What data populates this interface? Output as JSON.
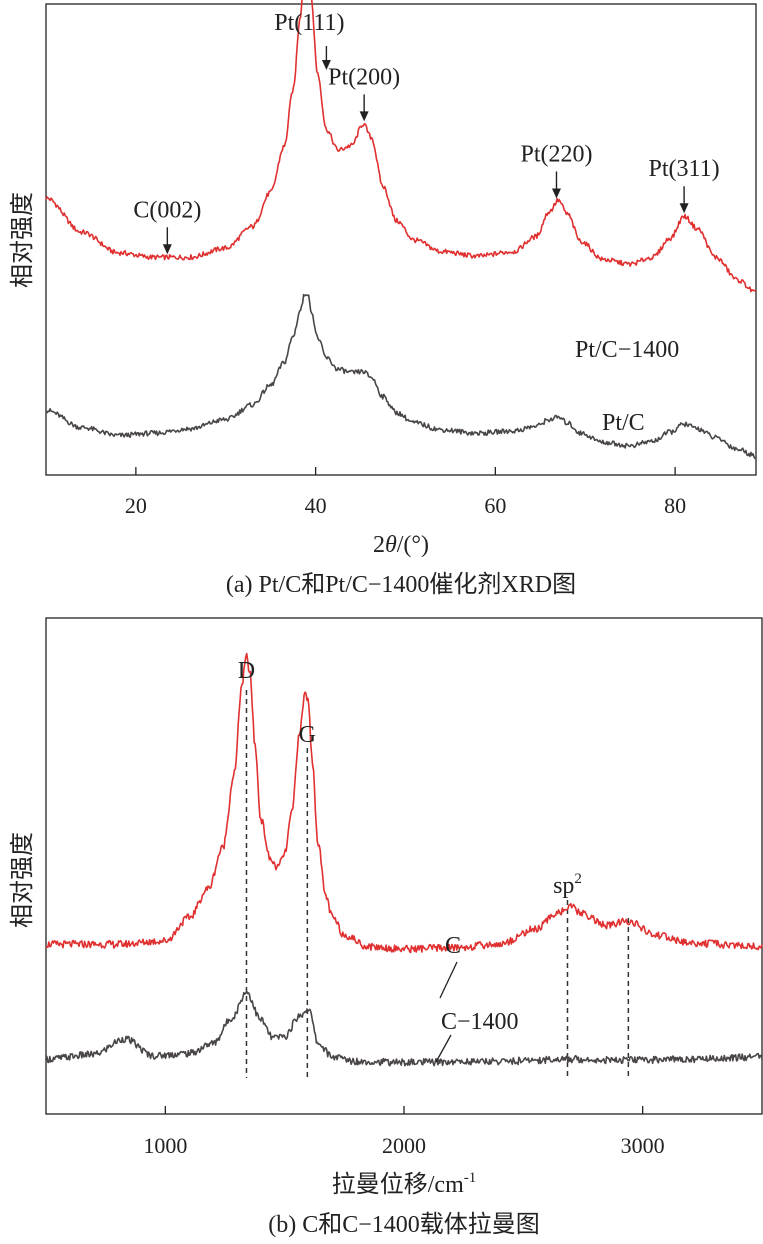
{
  "chart_data": [
    {
      "type": "line",
      "caption": "(a) Pt/C和Pt/C−1400催化剂XRD图",
      "xlabel": "2θ/(°)",
      "xlabel_prefix": "2",
      "xlabel_theta": "θ",
      "xlabel_suffix": "/(°)",
      "ylabel": "相对强度",
      "xlim": [
        10,
        89
      ],
      "xticks": [
        20,
        40,
        60,
        80
      ],
      "grid": false,
      "y_units": "relative intensity (a.u.)",
      "series": [
        {
          "name": "Pt/C−1400",
          "color": "#e03030",
          "x": [
            10,
            14,
            18,
            22,
            26,
            30,
            33,
            35,
            36.5,
            37.5,
            38.3,
            38.8,
            39.1,
            39.5,
            40.2,
            41.2,
            42.5,
            44,
            45.3,
            46.2,
            47.5,
            49,
            51,
            54,
            58,
            62,
            64.5,
            66,
            67,
            68,
            69.5,
            72,
            75,
            77.5,
            79.5,
            81,
            82.5,
            84.5,
            87,
            89
          ],
          "y": [
            10.0,
            7.0,
            5.2,
            4.8,
            4.8,
            5.6,
            7.5,
            10.5,
            14.5,
            19.5,
            26.0,
            30.5,
            31.0,
            27.5,
            21.0,
            16.0,
            14.2,
            14.6,
            16.5,
            15.3,
            11.0,
            8.0,
            6.3,
            5.3,
            4.9,
            5.3,
            6.6,
            8.8,
            9.8,
            8.6,
            6.2,
            4.6,
            4.2,
            4.8,
            6.5,
            8.4,
            7.3,
            4.8,
            2.8,
            1.7
          ]
        },
        {
          "name": "Pt/C",
          "color": "#4a4646",
          "x": [
            10,
            14,
            18,
            22,
            26,
            30,
            33,
            35,
            36.5,
            37.5,
            38.3,
            38.8,
            39.1,
            39.5,
            40.2,
            41.2,
            42.5,
            44,
            45.3,
            46.2,
            47.5,
            49,
            51,
            54,
            58,
            62,
            64.5,
            66,
            67,
            68,
            69.5,
            72,
            75,
            77.5,
            79.5,
            81,
            82.5,
            84.5,
            87,
            89
          ],
          "y": [
            4.0,
            2.5,
            1.8,
            2.0,
            2.4,
            3.2,
            4.5,
            6.2,
            8.2,
            10.5,
            12.8,
            14.2,
            14.3,
            12.8,
            10.4,
            8.6,
            7.6,
            7.3,
            7.4,
            6.9,
            5.2,
            3.8,
            2.9,
            2.3,
            2.0,
            2.2,
            2.6,
            3.2,
            3.4,
            2.9,
            2.0,
            1.2,
            0.9,
            1.3,
            2.1,
            2.8,
            2.4,
            1.6,
            0.6,
            0.0
          ]
        }
      ],
      "series_labels": [
        {
          "text": "Pt/C−1400",
          "series": "Pt/C−1400"
        },
        {
          "text": "Pt/C",
          "series": "Pt/C"
        }
      ],
      "annotations": [
        {
          "text": "Pt(111)",
          "x": 41.2,
          "arrow": true
        },
        {
          "text": "C(002)",
          "x": 23.5,
          "arrow": true
        },
        {
          "text": "Pt(200)",
          "x": 45.4,
          "arrow": true
        },
        {
          "text": "Pt(220)",
          "x": 66.8,
          "arrow": true
        },
        {
          "text": "Pt(311)",
          "x": 81.0,
          "arrow": true
        }
      ]
    },
    {
      "type": "line",
      "caption": "(b) C和C−1400载体拉曼图",
      "xlabel": "拉曼位移/cm-1",
      "xlabel_main": "拉曼位移/cm",
      "xlabel_sup": "-1",
      "ylabel": "相对强度",
      "xlim": [
        500,
        3500
      ],
      "xticks": [
        1000,
        2000,
        3000
      ],
      "grid": false,
      "y_units": "relative intensity (a.u.)",
      "series": [
        {
          "name": "C",
          "color": "#e03030",
          "x": [
            500,
            800,
            1000,
            1100,
            1180,
            1240,
            1290,
            1320,
            1340,
            1355,
            1375,
            1400,
            1440,
            1470,
            1500,
            1530,
            1560,
            1585,
            1600,
            1615,
            1640,
            1670,
            1700,
            1750,
            1850,
            2000,
            2200,
            2400,
            2550,
            2650,
            2700,
            2750,
            2850,
            2940,
            3050,
            3200,
            3500
          ],
          "y": [
            4.2,
            4.2,
            4.5,
            6.5,
            9.0,
            12.5,
            19.0,
            26.5,
            29.0,
            27.5,
            21.5,
            15.0,
            11.5,
            10.8,
            12.0,
            15.5,
            22.0,
            25.8,
            25.2,
            20.0,
            13.0,
            8.5,
            6.5,
            5.0,
            4.0,
            3.8,
            3.9,
            4.2,
            5.5,
            7.0,
            7.4,
            6.8,
            5.8,
            6.2,
            5.0,
            4.3,
            4.0
          ]
        },
        {
          "name": "C−1400",
          "color": "#4a4646",
          "x": [
            500,
            700,
            830,
            950,
            1100,
            1200,
            1280,
            1340,
            1400,
            1450,
            1500,
            1560,
            1600,
            1640,
            1700,
            1800,
            2000,
            2400,
            2700,
            2900,
            3200,
            3500
          ],
          "y": [
            0.8,
            1.2,
            2.6,
            1.1,
            1.3,
            2.2,
            4.5,
            6.8,
            4.3,
            2.7,
            2.8,
            4.6,
            5.3,
            2.2,
            1.0,
            0.6,
            0.5,
            0.6,
            0.8,
            0.7,
            0.8,
            1.0
          ]
        }
      ],
      "series_labels": [
        {
          "text": "C",
          "series": "C"
        },
        {
          "text": "C−1400",
          "series": "C−1400"
        }
      ],
      "annotations": [
        {
          "text": "D",
          "x": 1340,
          "dashed_line": true
        },
        {
          "text": "G",
          "x": 1595,
          "dashed_line": true
        },
        {
          "text": "sp2",
          "text_main": "sp",
          "text_sup": "2",
          "x": 2685,
          "dashed_line": true
        },
        {
          "x": 2940,
          "dashed_line": true
        }
      ]
    }
  ]
}
